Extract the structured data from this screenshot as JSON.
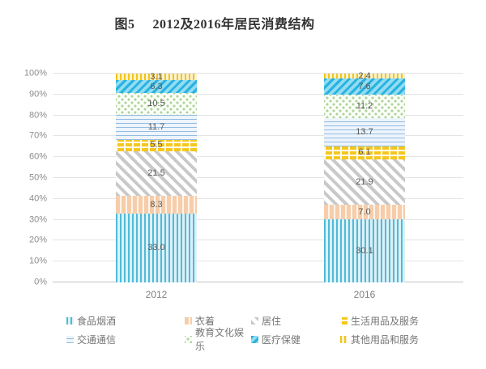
{
  "title": {
    "prefix": "图5",
    "text": "2012及2016年居民消费结构"
  },
  "chart_data": {
    "type": "bar",
    "subtype": "stacked-100",
    "categories": [
      "2012",
      "2016"
    ],
    "series": [
      {
        "key": "food",
        "name": "食品烟酒",
        "values": [
          33.0,
          30.1
        ],
        "pattern": "vertical-stripes",
        "fg": "#4fbbd9",
        "bg": "#dcf0f7"
      },
      {
        "key": "clothing",
        "name": "衣着",
        "values": [
          8.3,
          7.0
        ],
        "pattern": "vertical-bars",
        "fg": "#f6cdaa",
        "bg": "#fdf4ea"
      },
      {
        "key": "housing",
        "name": "居住",
        "values": [
          21.5,
          21.9
        ],
        "pattern": "diagonal-down",
        "fg": "#c9c9c9",
        "bg": "#ffffff"
      },
      {
        "key": "household",
        "name": "生活用品及服务",
        "values": [
          5.5,
          6.1
        ],
        "pattern": "brick",
        "fg": "#f5c71e",
        "bg": "#fffef5"
      },
      {
        "key": "transport",
        "name": "交通通信",
        "values": [
          11.7,
          13.7
        ],
        "pattern": "horizontal-lines",
        "fg": "#93bce0",
        "bg": "#edf4fb"
      },
      {
        "key": "education",
        "name": "教育文化娱乐",
        "values": [
          10.5,
          11.2
        ],
        "pattern": "dots",
        "fg": "#aed59a",
        "bg": "#fcfefa"
      },
      {
        "key": "healthcare",
        "name": "医疗保健",
        "values": [
          6.3,
          7.6
        ],
        "pattern": "diagonal-up",
        "fg": "#28b2e0",
        "bg": "#92dcf2"
      },
      {
        "key": "other",
        "name": "其他用品和服务",
        "values": [
          3.1,
          2.4
        ],
        "pattern": "vertical-stripes-thin",
        "fg": "#f0c51c",
        "bg": "#fbf2d0"
      }
    ],
    "y_ticks": [
      "0%",
      "10%",
      "20%",
      "30%",
      "40%",
      "50%",
      "60%",
      "70%",
      "80%",
      "90%",
      "100%"
    ],
    "ylim": [
      0,
      100
    ],
    "grid": true,
    "legend_position": "bottom",
    "value_label_decimals": 1
  }
}
